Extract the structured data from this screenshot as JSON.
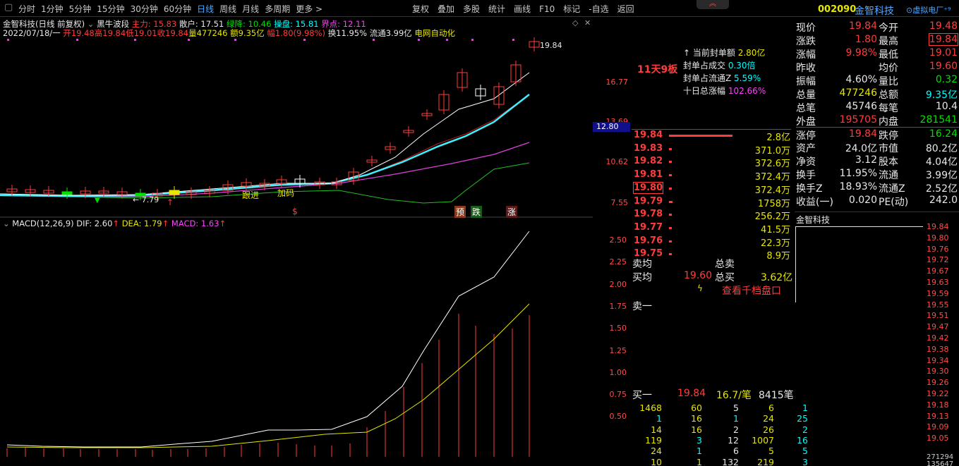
{
  "toolbar": {
    "periods": [
      "分时",
      "1分钟",
      "5分钟",
      "15分钟",
      "30分钟",
      "60分钟",
      "日线",
      "周线",
      "月线",
      "多周期",
      "更多 >"
    ],
    "active_period": "日线",
    "actions": [
      "复权",
      "叠加",
      "多股",
      "统计",
      "画线",
      "F10",
      "标记",
      "-自选",
      "返回"
    ],
    "stock_code": "002090",
    "stock_name": "金智科技",
    "plugin_label": "⊙虚拟电厂⁺⁹",
    "collapse_glyph": "︽"
  },
  "indicator_line": {
    "title": "金智科技(日线 前复权)",
    "indicator_name": "黑牛波段",
    "zhuli": "主力: 15.83",
    "sanhu": "散户: 17.51",
    "lvjiang": "绿降: 10.46",
    "caopan": "操盘: 15.81",
    "jiedian": "界点: 12.11"
  },
  "ohlc_line": {
    "date": "2022/07/18/一",
    "open": "开19.48",
    "high": "高19.84",
    "low": "低19.01",
    "close": "收19.84",
    "volume": "量477246",
    "amount": "额9.35亿",
    "change": "幅1.80(9.98%)",
    "turnover": "换11.95%",
    "float": "流通3.99亿",
    "concept": "电网自动化"
  },
  "seal_info": {
    "streak": "11天9板",
    "rows": [
      {
        "label": "当前封单额",
        "value": "2.80亿"
      },
      {
        "label": "封单占成交",
        "value": "0.30倍"
      },
      {
        "label": "封单占流通Z",
        "value": "5.59%"
      },
      {
        "label": "十日总涨幅",
        "value": "102.66%"
      }
    ]
  },
  "chart_labels": {
    "high_price": "19.84",
    "low_price": "7.79",
    "current_axis_value": "12.80",
    "annotations": [
      "跟进",
      "加码",
      "$",
      "预",
      "跌",
      "涨"
    ],
    "price_axis": [
      "16.77",
      "13.69",
      "10.62",
      "7.55"
    ]
  },
  "macd": {
    "title": "MACD(12,26,9)",
    "dif": "DIF: 2.60",
    "dea": "DEA: 1.79",
    "macd": "MACD: 1.63",
    "axis": [
      "2.50",
      "2.25",
      "2.00",
      "1.75",
      "1.50",
      "1.25",
      "1.00",
      "0.75",
      "0.50"
    ]
  },
  "quote": {
    "rows": [
      {
        "l1": "现价",
        "v1": "19.84",
        "c1": "red",
        "l2": "今开",
        "v2": "19.48",
        "c2": "red"
      },
      {
        "l1": "涨跌",
        "v1": "1.80",
        "c1": "red",
        "l2": "最高",
        "v2": "19.84",
        "c2": "red"
      },
      {
        "l1": "涨幅",
        "v1": "9.98%",
        "c1": "red",
        "l2": "最低",
        "v2": "19.01",
        "c2": "red"
      },
      {
        "l1": "昨收",
        "v1": "",
        "c1": "white",
        "l2": "均价",
        "v2": "19.60",
        "c2": "red"
      },
      {
        "l1": "振幅",
        "v1": "4.60%",
        "c1": "white",
        "l2": "量比",
        "v2": "0.32",
        "c2": "green"
      },
      {
        "l1": "总量",
        "v1": "477246",
        "c1": "yellow",
        "l2": "总额",
        "v2": "9.35亿",
        "c2": "cyan"
      },
      {
        "l1": "总笔",
        "v1": "45746",
        "c1": "white",
        "l2": "每笔",
        "v2": "10.4",
        "c2": "white"
      },
      {
        "l1": "外盘",
        "v1": "195705",
        "c1": "red",
        "l2": "内盘",
        "v2": "281541",
        "c2": "green"
      },
      {
        "l1": "涨停",
        "v1": "19.84",
        "c1": "red",
        "l2": "跌停",
        "v2": "16.24",
        "c2": "green"
      },
      {
        "l1": "资产",
        "v1": "24.0亿",
        "c1": "white",
        "l2": "市值",
        "v2": "80.2亿",
        "c2": "white"
      },
      {
        "l1": "净资",
        "v1": "3.12",
        "c1": "white",
        "l2": "股本",
        "v2": "4.04亿",
        "c2": "white"
      },
      {
        "l1": "换手",
        "v1": "11.95%",
        "c1": "white",
        "l2": "流通",
        "v2": "3.99亿",
        "c2": "white"
      },
      {
        "l1": "换手Z",
        "v1": "18.93%",
        "c1": "white",
        "l2": "流通Z",
        "v2": "2.52亿",
        "c2": "white"
      },
      {
        "l1": "收益(一)",
        "v1": "0.020",
        "c1": "white",
        "l2": "PE(动)",
        "v2": "242.0",
        "c2": "white"
      }
    ]
  },
  "orderbook": {
    "asks": [
      {
        "price": "19.84",
        "vol": "2.8亿",
        "bar": 1.0
      },
      {
        "price": "19.83",
        "vol": "371.0万",
        "bar": 0.02
      },
      {
        "price": "19.82",
        "vol": "372.6万",
        "bar": 0.02
      },
      {
        "price": "19.81",
        "vol": "372.4万",
        "bar": 0.02
      },
      {
        "price": "19.80",
        "vol": "372.4万",
        "bar": 0.02
      },
      {
        "price": "19.79",
        "vol": "1758万",
        "bar": 0.06
      },
      {
        "price": "19.78",
        "vol": "256.2万",
        "bar": 0.02
      },
      {
        "price": "19.77",
        "vol": "41.5万",
        "bar": 0.01
      },
      {
        "price": "19.76",
        "vol": "22.3万",
        "bar": 0.01
      },
      {
        "price": "19.75",
        "vol": "8.9万",
        "bar": 0.01
      }
    ],
    "sell_avg_label": "卖均",
    "total_sell_label": "总卖",
    "buy_avg_label": "买均",
    "buy_avg": "19.60",
    "total_buy_label": "总买",
    "total_buy": "3.62亿",
    "view_depth": "查看千档盘口",
    "sell1_label": "卖一",
    "buy1_label": "买一",
    "buy1_price": "19.84",
    "buy1_per": "16.7/笔",
    "buy1_count": "8415笔",
    "queue": [
      [
        "1468",
        "60",
        "5",
        "6",
        "1"
      ],
      [
        "1",
        "16",
        "1",
        "24",
        "25"
      ],
      [
        "14",
        "16",
        "2",
        "26",
        "2"
      ],
      [
        "119",
        "3",
        "12",
        "1007",
        "16"
      ],
      [
        "24",
        "1",
        "6",
        "5",
        "5"
      ],
      [
        "10",
        "1",
        "132",
        "219",
        "3"
      ]
    ]
  },
  "minichart": {
    "title": "金智科技",
    "axis": [
      "19.84",
      "19.80",
      "19.76",
      "19.72",
      "19.67",
      "19.63",
      "19.59",
      "19.55",
      "19.51",
      "19.47",
      "19.42",
      "19.38",
      "19.34",
      "19.30",
      "19.26",
      "19.22",
      "19.18",
      "19.13",
      "19.09",
      "19.05"
    ],
    "bottom_values": [
      "271294",
      "135647"
    ]
  },
  "colors": {
    "up": "#ff3c3c",
    "down": "#00e000",
    "ma_white": "#ffffff",
    "ma_cyan": "#3ff0ff",
    "ma_magenta": "#e040e0",
    "ma_green": "#20c020",
    "ma_darkred": "#c02020"
  }
}
